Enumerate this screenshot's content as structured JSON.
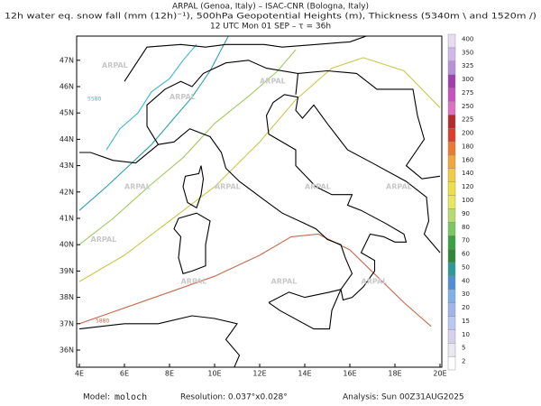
{
  "header": {
    "line1": "ARPAL (Genoa, Italy)  –  ISAC-CNR (Bologna, Italy)",
    "line2": "12h water eq. snow fall (mm (12h)⁻¹), 500hPa Geopotential Heights (m), Thickness (5340m \\ and 1520m /)",
    "line3": "12 UTC Mon 01 SEP  –  τ = 36h"
  },
  "map": {
    "lon_labels": [
      "4E",
      "6E",
      "8E",
      "10E",
      "12E",
      "14E",
      "16E",
      "18E",
      "20E"
    ],
    "lat_labels": [
      "36N",
      "37N",
      "38N",
      "39N",
      "40N",
      "41N",
      "42N",
      "43N",
      "44N",
      "45N",
      "46N",
      "47N"
    ],
    "watermark": "ARPAL",
    "contour_labels": [
      "5580",
      "5880"
    ]
  },
  "colorbar": {
    "levels": [
      2,
      5,
      10,
      15,
      20,
      30,
      40,
      50,
      60,
      70,
      80,
      90,
      100,
      120,
      140,
      160,
      180,
      200,
      225,
      250,
      275,
      300,
      325,
      350,
      400
    ],
    "colors": [
      "#ffffff",
      "#e8e8ee",
      "#d6d0ee",
      "#b8c8ee",
      "#9fb4e8",
      "#7fb0e6",
      "#4f8fd8",
      "#2c9a9a",
      "#2a8a3a",
      "#3aa040",
      "#7cc860",
      "#b6dc70",
      "#e6e85a",
      "#eee040",
      "#f2cc40",
      "#f0a838",
      "#ee7a30",
      "#e03c2a",
      "#b82a2a",
      "#e070c0",
      "#c850c0",
      "#a040b0",
      "#b890d8",
      "#d0b8e8",
      "#e8dcf2"
    ]
  },
  "footer": {
    "model_label": "Model:",
    "model": "moloch",
    "resolution": "Resolution: 0.037°x0.028°",
    "analysis": "Analysis: Sun 00Z31AUG2025"
  }
}
